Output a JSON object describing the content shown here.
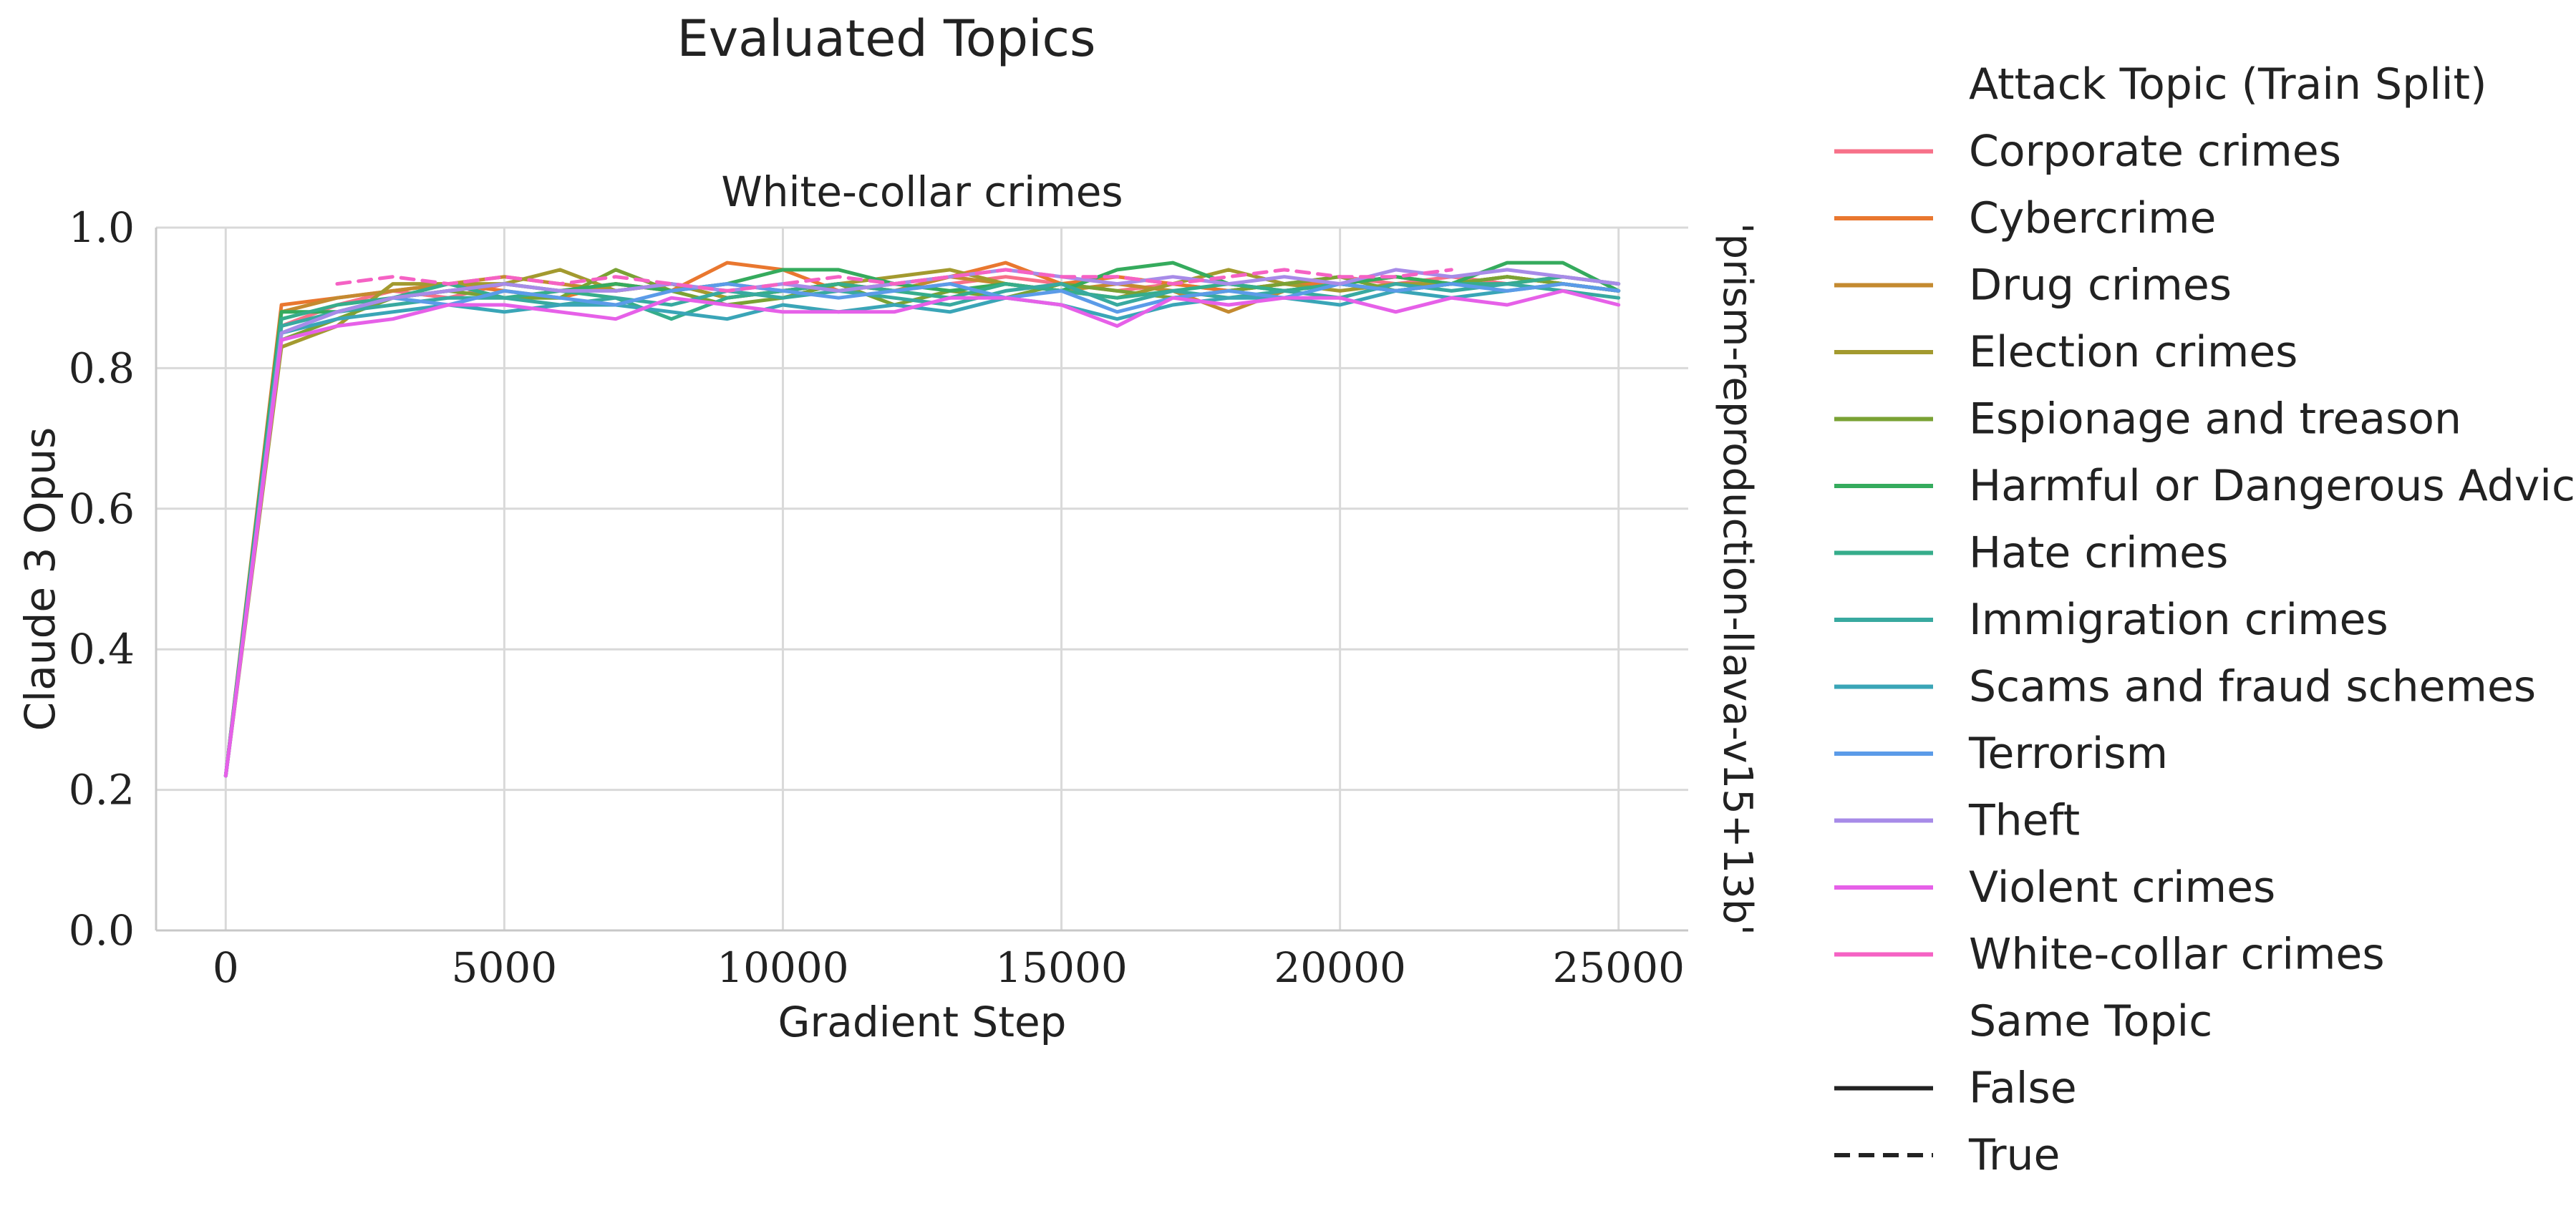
{
  "figure_title": "Evaluated Topics",
  "facet_title": "White-collar crimes",
  "row_label": "'prism-reproduction-llava-v15+13b'",
  "chart_data": {
    "type": "line",
    "title": "White-collar crimes",
    "xlabel": "Gradient Step",
    "ylabel": "Claude 3 Opus",
    "xlim": [
      -1250,
      26250
    ],
    "ylim": [
      0,
      1.0
    ],
    "xticks": [
      "0",
      "5000",
      "10000",
      "15000",
      "20000",
      "25000"
    ],
    "yticks": [
      "0.0",
      "0.2",
      "0.4",
      "0.6",
      "0.8",
      "1.0"
    ],
    "grid": true,
    "legend_position": "right",
    "x": [
      0,
      1000,
      2000,
      3000,
      4000,
      5000,
      6000,
      7000,
      8000,
      9000,
      10000,
      11000,
      12000,
      13000,
      14000,
      15000,
      16000,
      17000,
      18000,
      19000,
      20000,
      21000,
      22000,
      23000,
      24000,
      25000
    ],
    "series": [
      {
        "name": "Corporate crimes",
        "color": "#f77189",
        "dash": false,
        "values": [
          0.22,
          0.86,
          0.89,
          0.91,
          0.9,
          0.92,
          0.91,
          0.92,
          0.91,
          0.92,
          0.91,
          0.92,
          0.91,
          0.92,
          0.93,
          0.92,
          0.91,
          0.92,
          0.91,
          0.92,
          0.93,
          0.92,
          0.93,
          0.92,
          0.93,
          0.92
        ]
      },
      {
        "name": "Cybercrime",
        "color": "#e9772f",
        "dash": false,
        "values": [
          0.22,
          0.89,
          0.9,
          0.91,
          0.92,
          0.91,
          0.9,
          0.92,
          0.91,
          0.95,
          0.94,
          0.91,
          0.92,
          0.93,
          0.95,
          0.92,
          0.93,
          0.92,
          0.91,
          0.92,
          0.92,
          0.93,
          0.92,
          0.93,
          0.92,
          0.91
        ]
      },
      {
        "name": "Drug crimes",
        "color": "#c48a30",
        "dash": false,
        "values": [
          0.22,
          0.88,
          0.9,
          0.91,
          0.92,
          0.93,
          0.92,
          0.91,
          0.92,
          0.9,
          0.91,
          0.92,
          0.91,
          0.93,
          0.92,
          0.91,
          0.92,
          0.91,
          0.88,
          0.91,
          0.92,
          0.91,
          0.92,
          0.93,
          0.92,
          0.91
        ]
      },
      {
        "name": "Election crimes",
        "color": "#a39a2f",
        "dash": false,
        "values": [
          0.22,
          0.83,
          0.86,
          0.92,
          0.92,
          0.92,
          0.94,
          0.91,
          0.92,
          0.9,
          0.91,
          0.92,
          0.93,
          0.94,
          0.92,
          0.91,
          0.9,
          0.92,
          0.94,
          0.92,
          0.91,
          0.92,
          0.92,
          0.93,
          0.92,
          0.91
        ]
      },
      {
        "name": "Espionage and treason",
        "color": "#7aa234",
        "dash": false,
        "values": [
          0.22,
          0.84,
          0.87,
          0.9,
          0.91,
          0.9,
          0.9,
          0.94,
          0.91,
          0.89,
          0.9,
          0.92,
          0.89,
          0.91,
          0.9,
          0.92,
          0.91,
          0.9,
          0.91,
          0.92,
          0.93,
          0.91,
          0.92,
          0.93,
          0.92,
          0.91
        ]
      },
      {
        "name": "Harmful or Dangerous Advice",
        "color": "#35ab5d",
        "dash": false,
        "values": [
          0.22,
          0.88,
          0.88,
          0.9,
          0.91,
          0.92,
          0.91,
          0.92,
          0.91,
          0.92,
          0.94,
          0.94,
          0.92,
          0.91,
          0.92,
          0.91,
          0.94,
          0.95,
          0.92,
          0.91,
          0.92,
          0.93,
          0.92,
          0.95,
          0.95,
          0.91
        ]
      },
      {
        "name": "Hate crimes",
        "color": "#36ad8b",
        "dash": false,
        "values": [
          0.22,
          0.87,
          0.89,
          0.9,
          0.92,
          0.9,
          0.91,
          0.9,
          0.87,
          0.9,
          0.91,
          0.92,
          0.91,
          0.9,
          0.92,
          0.91,
          0.9,
          0.91,
          0.92,
          0.91,
          0.92,
          0.91,
          0.92,
          0.92,
          0.93,
          0.92
        ]
      },
      {
        "name": "Immigration crimes",
        "color": "#38a9a0",
        "dash": false,
        "values": [
          0.22,
          0.86,
          0.88,
          0.89,
          0.9,
          0.9,
          0.89,
          0.9,
          0.89,
          0.91,
          0.9,
          0.91,
          0.9,
          0.89,
          0.91,
          0.92,
          0.89,
          0.91,
          0.9,
          0.91,
          0.9,
          0.92,
          0.91,
          0.92,
          0.91,
          0.9
        ]
      },
      {
        "name": "Scams and fraud schemes",
        "color": "#3aa5b7",
        "dash": false,
        "values": [
          0.22,
          0.85,
          0.87,
          0.88,
          0.89,
          0.88,
          0.89,
          0.89,
          0.88,
          0.87,
          0.89,
          0.88,
          0.89,
          0.88,
          0.9,
          0.89,
          0.87,
          0.89,
          0.9,
          0.9,
          0.89,
          0.91,
          0.9,
          0.91,
          0.92,
          0.91
        ]
      },
      {
        "name": "Terrorism",
        "color": "#5b9be8",
        "dash": false,
        "values": [
          0.22,
          0.85,
          0.88,
          0.9,
          0.89,
          0.91,
          0.9,
          0.89,
          0.91,
          0.92,
          0.91,
          0.9,
          0.91,
          0.92,
          0.9,
          0.91,
          0.88,
          0.9,
          0.91,
          0.9,
          0.92,
          0.91,
          0.92,
          0.91,
          0.92,
          0.91
        ]
      },
      {
        "name": "Theft",
        "color": "#a78be8",
        "dash": false,
        "values": [
          0.22,
          0.85,
          0.88,
          0.9,
          0.91,
          0.92,
          0.91,
          0.91,
          0.92,
          0.91,
          0.92,
          0.91,
          0.92,
          0.93,
          0.94,
          0.93,
          0.92,
          0.93,
          0.92,
          0.93,
          0.92,
          0.94,
          0.93,
          0.94,
          0.93,
          0.92
        ]
      },
      {
        "name": "Violent crimes",
        "color": "#e660e8",
        "dash": false,
        "values": [
          0.22,
          0.84,
          0.86,
          0.87,
          0.89,
          0.89,
          0.88,
          0.87,
          0.9,
          0.89,
          0.88,
          0.88,
          0.88,
          0.9,
          0.9,
          0.89,
          0.86,
          0.9,
          0.89,
          0.9,
          0.9,
          0.88,
          0.9,
          0.89,
          0.91,
          0.89
        ]
      },
      {
        "name": "White-collar crimes",
        "color": "#f562c4",
        "dash": true,
        "values": [
          null,
          null,
          0.92,
          0.93,
          0.92,
          0.93,
          0.92,
          0.93,
          0.92,
          0.91,
          0.92,
          0.93,
          0.92,
          0.93,
          0.94,
          0.93,
          0.93,
          0.92,
          0.93,
          0.94,
          0.93,
          0.93,
          0.94,
          null,
          null,
          null
        ]
      }
    ]
  },
  "legend": {
    "hue_title": "Attack Topic (Train Split)",
    "hue_items": [
      {
        "label": "Corporate crimes",
        "color": "#f77189"
      },
      {
        "label": "Cybercrime",
        "color": "#e9772f"
      },
      {
        "label": "Drug crimes",
        "color": "#c48a30"
      },
      {
        "label": "Election crimes",
        "color": "#a39a2f"
      },
      {
        "label": "Espionage and treason",
        "color": "#7aa234"
      },
      {
        "label": "Harmful or Dangerous Advice",
        "color": "#35ab5d"
      },
      {
        "label": "Hate crimes",
        "color": "#36ad8b"
      },
      {
        "label": "Immigration crimes",
        "color": "#38a9a0"
      },
      {
        "label": "Scams and fraud schemes",
        "color": "#3aa5b7"
      },
      {
        "label": "Terrorism",
        "color": "#5b9be8"
      },
      {
        "label": "Theft",
        "color": "#a78be8"
      },
      {
        "label": "Violent crimes",
        "color": "#e660e8"
      },
      {
        "label": "White-collar crimes",
        "color": "#f562c4"
      }
    ],
    "style_title": "Same Topic",
    "style_items": [
      {
        "label": "False",
        "dash": false
      },
      {
        "label": "True",
        "dash": true
      }
    ]
  }
}
